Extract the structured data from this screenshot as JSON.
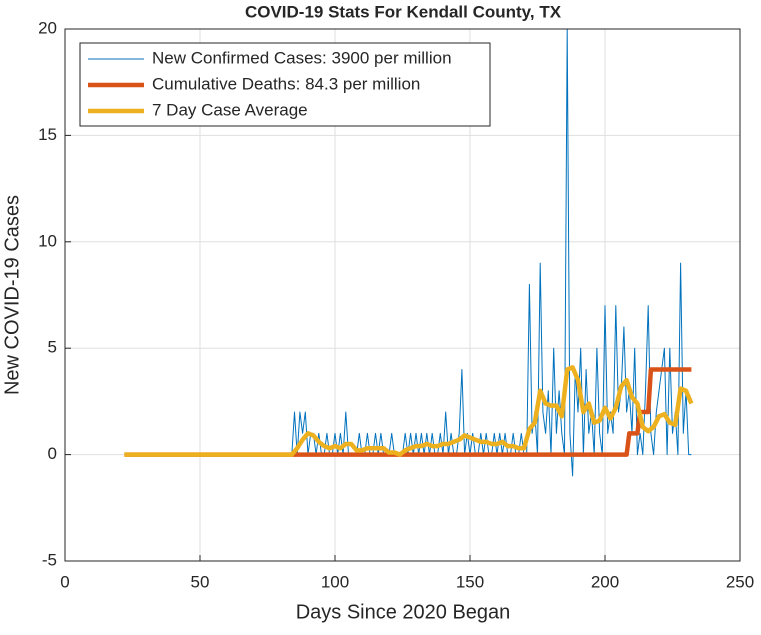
{
  "chart_data": {
    "type": "line",
    "title": "COVID-19 Stats For Kendall County, TX",
    "xlabel": "Days Since 2020 Began",
    "ylabel": "New COVID-19 Cases",
    "xlim": [
      0,
      250
    ],
    "xticks": [
      0,
      50,
      100,
      150,
      200,
      250
    ],
    "ylim": [
      -5,
      20
    ],
    "yticks": [
      -5,
      0,
      5,
      10,
      15,
      20
    ],
    "grid": true,
    "legend": "upper left",
    "series": [
      {
        "name": "New Confirmed Cases: 3900 per million",
        "color": "#0072BD",
        "width": 1,
        "x": [
          22,
          84,
          85,
          86,
          87,
          88,
          89,
          90,
          91,
          92,
          93,
          94,
          95,
          96,
          97,
          98,
          99,
          100,
          101,
          102,
          103,
          104,
          105,
          106,
          107,
          108,
          109,
          110,
          111,
          112,
          113,
          114,
          115,
          116,
          117,
          118,
          119,
          120,
          121,
          122,
          123,
          124,
          125,
          126,
          127,
          128,
          129,
          130,
          131,
          132,
          133,
          134,
          135,
          136,
          137,
          138,
          139,
          140,
          141,
          142,
          143,
          144,
          145,
          146,
          147,
          148,
          149,
          150,
          151,
          152,
          153,
          154,
          155,
          156,
          157,
          158,
          159,
          160,
          161,
          162,
          163,
          164,
          165,
          166,
          167,
          168,
          169,
          170,
          171,
          172,
          173,
          174,
          175,
          176,
          177,
          178,
          179,
          180,
          181,
          182,
          183,
          184,
          185,
          186,
          187,
          188,
          189,
          190,
          191,
          192,
          193,
          194,
          195,
          196,
          197,
          198,
          199,
          200,
          201,
          202,
          203,
          204,
          205,
          206,
          207,
          208,
          209,
          210,
          211,
          212,
          213,
          214,
          215,
          216,
          217,
          218,
          219,
          220,
          221,
          222,
          223,
          224,
          225,
          226,
          227,
          228,
          229,
          230,
          231,
          232
        ],
        "values": [
          0,
          0,
          2,
          0,
          2,
          1,
          2,
          0,
          1,
          1,
          0,
          1,
          0,
          0,
          1,
          0,
          0,
          1,
          0,
          1,
          0,
          2,
          0,
          0,
          0,
          0,
          1,
          0,
          0,
          1,
          0,
          0,
          1,
          0,
          1,
          0,
          0,
          0,
          1,
          0,
          0,
          0,
          0,
          1,
          0,
          1,
          0,
          1,
          0,
          1,
          0,
          1,
          0,
          1,
          0,
          0,
          1,
          0,
          2,
          0,
          1,
          0,
          0,
          1,
          4,
          0,
          1,
          0,
          1,
          0,
          0,
          1,
          0,
          1,
          0,
          0,
          1,
          0,
          1,
          0,
          1,
          0,
          0,
          1,
          0,
          0,
          1,
          0,
          0,
          8,
          1,
          2,
          0,
          9,
          2,
          1,
          3,
          0,
          5,
          1,
          3,
          1,
          0,
          20,
          1,
          -1,
          4,
          2,
          5,
          0,
          4,
          1,
          2,
          0,
          5,
          1,
          0,
          7,
          1,
          2,
          1,
          7,
          2,
          3,
          6,
          2,
          3,
          1,
          5,
          0,
          1,
          0,
          3,
          7,
          1,
          0,
          2,
          3,
          4,
          5,
          0,
          5,
          1,
          2,
          0,
          9,
          1,
          3,
          0,
          0
        ]
      },
      {
        "name": "Cumulative Deaths: 84.3 per million",
        "color": "#D95319",
        "width": 4.5,
        "x": [
          22,
          208,
          209,
          212,
          213,
          216,
          217,
          232
        ],
        "values": [
          0,
          0,
          1,
          1,
          2,
          2,
          4,
          4
        ]
      },
      {
        "name": "7 Day Case Average",
        "color": "#EDB120",
        "width": 4.5,
        "x": [
          22,
          84,
          86,
          88,
          90,
          92,
          94,
          96,
          98,
          100,
          102,
          104,
          106,
          108,
          110,
          112,
          114,
          116,
          118,
          120,
          122,
          124,
          126,
          128,
          130,
          132,
          134,
          136,
          138,
          140,
          142,
          144,
          146,
          148,
          150,
          152,
          154,
          156,
          158,
          160,
          162,
          164,
          166,
          168,
          170,
          172,
          174,
          176,
          178,
          180,
          182,
          184,
          186,
          188,
          190,
          192,
          194,
          196,
          198,
          200,
          202,
          204,
          206,
          208,
          210,
          212,
          214,
          216,
          218,
          220,
          222,
          224,
          226,
          228,
          230,
          232
        ],
        "values": [
          0,
          0,
          0.3,
          0.7,
          1,
          0.9,
          0.6,
          0.4,
          0.3,
          0.4,
          0.3,
          0.5,
          0.5,
          0.2,
          0.2,
          0.3,
          0.3,
          0.3,
          0.3,
          0.1,
          0.1,
          0,
          0.2,
          0.3,
          0.4,
          0.4,
          0.5,
          0.4,
          0.4,
          0.5,
          0.5,
          0.6,
          0.7,
          0.9,
          0.8,
          0.7,
          0.6,
          0.6,
          0.5,
          0.5,
          0.6,
          0.4,
          0.4,
          0.3,
          0.3,
          1.2,
          1.5,
          3,
          2.4,
          2.3,
          2.3,
          1.8,
          4,
          4.1,
          3.5,
          2,
          2.4,
          1.5,
          1.6,
          2.2,
          1.7,
          2.2,
          3.2,
          3.5,
          2.7,
          2.4,
          1.3,
          1.1,
          1.3,
          1.8,
          1.9,
          1.5,
          1.4,
          3.1,
          3,
          2.4
        ]
      }
    ]
  }
}
